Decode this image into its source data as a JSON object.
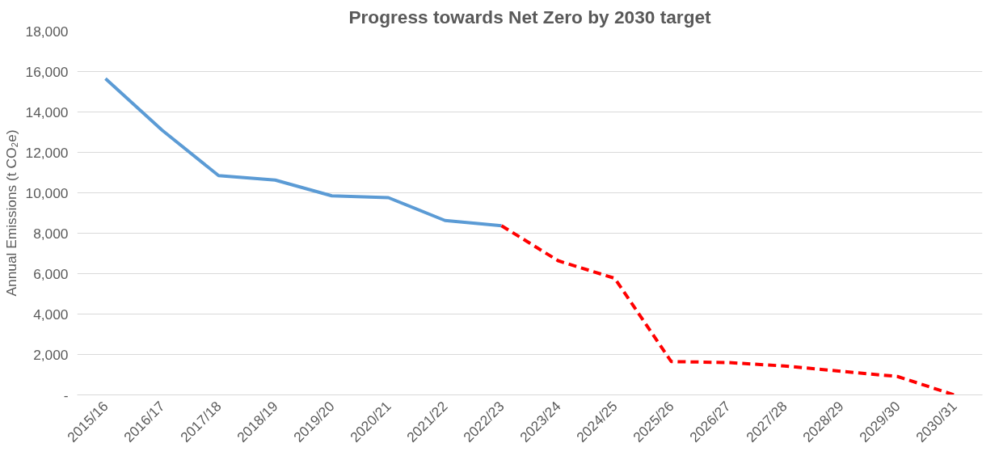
{
  "chart_data": {
    "type": "line",
    "title": "Progress towards Net Zero by 2030 target",
    "ylabel": "Annual Emissions (t CO₂e)",
    "categories": [
      "2015/16",
      "2016/17",
      "2017/18",
      "2018/19",
      "2019/20",
      "2020/21",
      "2021/22",
      "2022/23",
      "2023/24",
      "2024/25",
      "2025/26",
      "2026/27",
      "2027/28",
      "2028/29",
      "2029/30",
      "2030/31"
    ],
    "series": [
      {
        "color": "#5b9bd5",
        "line_style": "solid",
        "values": [
          15650,
          13100,
          10850,
          10630,
          9850,
          9760,
          8630,
          8370,
          null,
          null,
          null,
          null,
          null,
          null,
          null,
          null
        ]
      },
      {
        "color": "#ff0000",
        "line_style": "dashed",
        "values": [
          null,
          null,
          null,
          null,
          null,
          null,
          null,
          8370,
          6640,
          5770,
          1650,
          1600,
          1430,
          1170,
          910,
          0
        ]
      }
    ],
    "ylim": [
      0,
      18000
    ],
    "yticks": [
      {
        "value": 0,
        "label": "-"
      },
      {
        "value": 2000,
        "label": "2,000"
      },
      {
        "value": 4000,
        "label": "4,000"
      },
      {
        "value": 6000,
        "label": "6,000"
      },
      {
        "value": 8000,
        "label": "8,000"
      },
      {
        "value": 10000,
        "label": "10,000"
      },
      {
        "value": 12000,
        "label": "12,000"
      },
      {
        "value": 14000,
        "label": "14,000"
      },
      {
        "value": 16000,
        "label": "16,000"
      },
      {
        "value": 18000,
        "label": "18,000"
      }
    ],
    "grid": "y"
  }
}
